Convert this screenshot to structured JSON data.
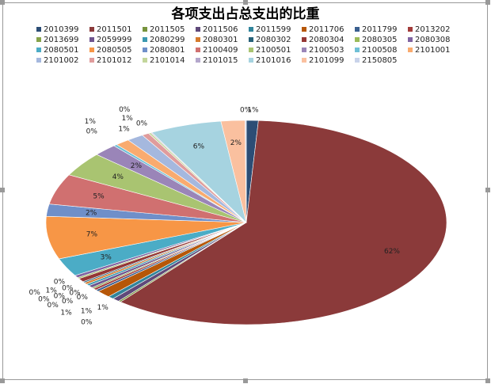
{
  "chart_data": {
    "type": "pie",
    "title": "各项支出占总支出的比重",
    "categories": [
      "2010399",
      "2011501",
      "2011505",
      "2011506",
      "2011599",
      "2011706",
      "2011799",
      "2013202",
      "2013699",
      "2059999",
      "2080299",
      "2080301",
      "2080302",
      "2080304",
      "2080305",
      "2080308",
      "2080501",
      "2080505",
      "2080801",
      "2100409",
      "2100501",
      "2100503",
      "2100508",
      "2101001",
      "2101002",
      "2101012",
      "2101014",
      "2101015",
      "2101016",
      "2101099",
      "2150805"
    ],
    "values": [
      1,
      62,
      0.2,
      0.6,
      0.5,
      1.2,
      0.3,
      0.3,
      0.2,
      0.4,
      0.3,
      0.3,
      0.2,
      0.6,
      0.2,
      0.4,
      3,
      7,
      2,
      5,
      4,
      2,
      0.3,
      1.2,
      1.4,
      0.6,
      0.2,
      0.1,
      6,
      2,
      0.1
    ],
    "value_labels": [
      "1%",
      "62%",
      "0%",
      "1%",
      "1%",
      "1%",
      "0%",
      "0%",
      "0%",
      "0%",
      "0%",
      "0%",
      "0%",
      "1%",
      "0%",
      "0%",
      "3%",
      "7%",
      "2%",
      "5%",
      "4%",
      "2%",
      "0%",
      "1%",
      "1%",
      "1%",
      "0%",
      "0%",
      "6%",
      "2%",
      "0%"
    ],
    "colors": [
      "#2c4d75",
      "#8b3a3a",
      "#77933c",
      "#5f497a",
      "#31859c",
      "#b65708",
      "#3a5f8f",
      "#a33c3a",
      "#86a34a",
      "#6e548e",
      "#3b98b0",
      "#d57a2c",
      "#276179",
      "#953735",
      "#9bbb59",
      "#8064a2",
      "#4bacc6",
      "#f79646",
      "#6f8fc9",
      "#d07070",
      "#a9c471",
      "#9a85b8",
      "#6fc0d6",
      "#f9ab6f",
      "#a5b8de",
      "#e09c9c",
      "#c3d69b",
      "#b4a7cc",
      "#a6d3e0",
      "#fac09f",
      "#c9d3ea"
    ]
  }
}
